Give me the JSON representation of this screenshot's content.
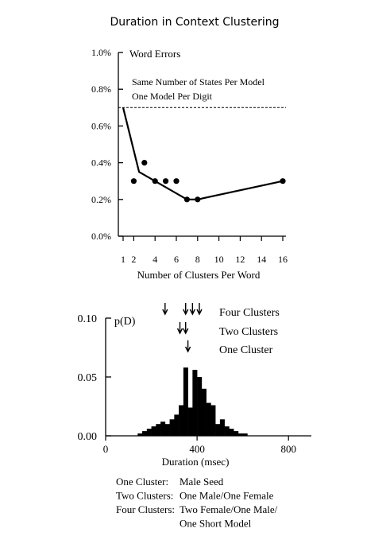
{
  "title": "Duration in Context Clustering",
  "chart_data": [
    {
      "type": "line",
      "xlabel": "Number of Clusters Per Word",
      "ylabel": "Word Errors",
      "x_ticks": [
        "1",
        "2",
        "4",
        "6",
        "8",
        "10",
        "12",
        "14",
        "16"
      ],
      "y_ticks": [
        "0.0%",
        "0.2%",
        "0.4%",
        "0.6%",
        "0.8%",
        "1.0%"
      ],
      "xlim": [
        1,
        16
      ],
      "ylim": [
        0,
        1.0
      ],
      "baseline": {
        "value": 0.7,
        "label_line1": "Same Number of States Per Model",
        "label_line2": "One Model Per Digit"
      },
      "line_points": [
        {
          "x": 1,
          "y": 0.7
        },
        {
          "x": 2.5,
          "y": 0.35
        },
        {
          "x": 7,
          "y": 0.2
        },
        {
          "x": 8,
          "y": 0.2
        },
        {
          "x": 16,
          "y": 0.3
        }
      ],
      "scatter_points": [
        {
          "x": 2,
          "y": 0.3
        },
        {
          "x": 3,
          "y": 0.4
        },
        {
          "x": 4,
          "y": 0.3
        },
        {
          "x": 5,
          "y": 0.3
        },
        {
          "x": 6,
          "y": 0.3
        },
        {
          "x": 7,
          "y": 0.2
        },
        {
          "x": 8,
          "y": 0.2
        },
        {
          "x": 16,
          "y": 0.3
        }
      ]
    },
    {
      "type": "bar",
      "ylabel": "p(D)",
      "xlabel": "Duration (msec)",
      "x_ticks": [
        "0",
        "400",
        "800"
      ],
      "y_ticks": [
        "0.00",
        "0.05",
        "0.10"
      ],
      "xlim": [
        0,
        900
      ],
      "ylim": [
        0,
        0.1
      ],
      "bin_width": 20,
      "bins": [
        {
          "x": 140,
          "y": 0.002
        },
        {
          "x": 160,
          "y": 0.004
        },
        {
          "x": 180,
          "y": 0.006
        },
        {
          "x": 200,
          "y": 0.008
        },
        {
          "x": 220,
          "y": 0.01
        },
        {
          "x": 240,
          "y": 0.012
        },
        {
          "x": 260,
          "y": 0.01
        },
        {
          "x": 280,
          "y": 0.014
        },
        {
          "x": 300,
          "y": 0.018
        },
        {
          "x": 320,
          "y": 0.026
        },
        {
          "x": 340,
          "y": 0.058
        },
        {
          "x": 360,
          "y": 0.024
        },
        {
          "x": 380,
          "y": 0.056
        },
        {
          "x": 400,
          "y": 0.05
        },
        {
          "x": 420,
          "y": 0.04
        },
        {
          "x": 440,
          "y": 0.028
        },
        {
          "x": 460,
          "y": 0.026
        },
        {
          "x": 480,
          "y": 0.01
        },
        {
          "x": 500,
          "y": 0.014
        },
        {
          "x": 520,
          "y": 0.008
        },
        {
          "x": 540,
          "y": 0.006
        },
        {
          "x": 560,
          "y": 0.004
        },
        {
          "x": 580,
          "y": 0.002
        },
        {
          "x": 600,
          "y": 0.002
        }
      ],
      "arrow_groups": [
        {
          "label": "Four  Clusters",
          "x": [
            260,
            350,
            380,
            410
          ]
        },
        {
          "label": "Two  Clusters",
          "x": [
            325,
            350
          ]
        },
        {
          "label": "One  Cluster",
          "x": [
            360
          ]
        }
      ]
    }
  ],
  "legend": [
    {
      "key": "One Cluster:",
      "value_lines": [
        "Male Seed"
      ]
    },
    {
      "key": "Two Clusters:",
      "value_lines": [
        "One Male/One Female"
      ]
    },
    {
      "key": "Four Clusters:",
      "value_lines": [
        "Two Female/One Male/",
        "One Short Model"
      ]
    }
  ]
}
